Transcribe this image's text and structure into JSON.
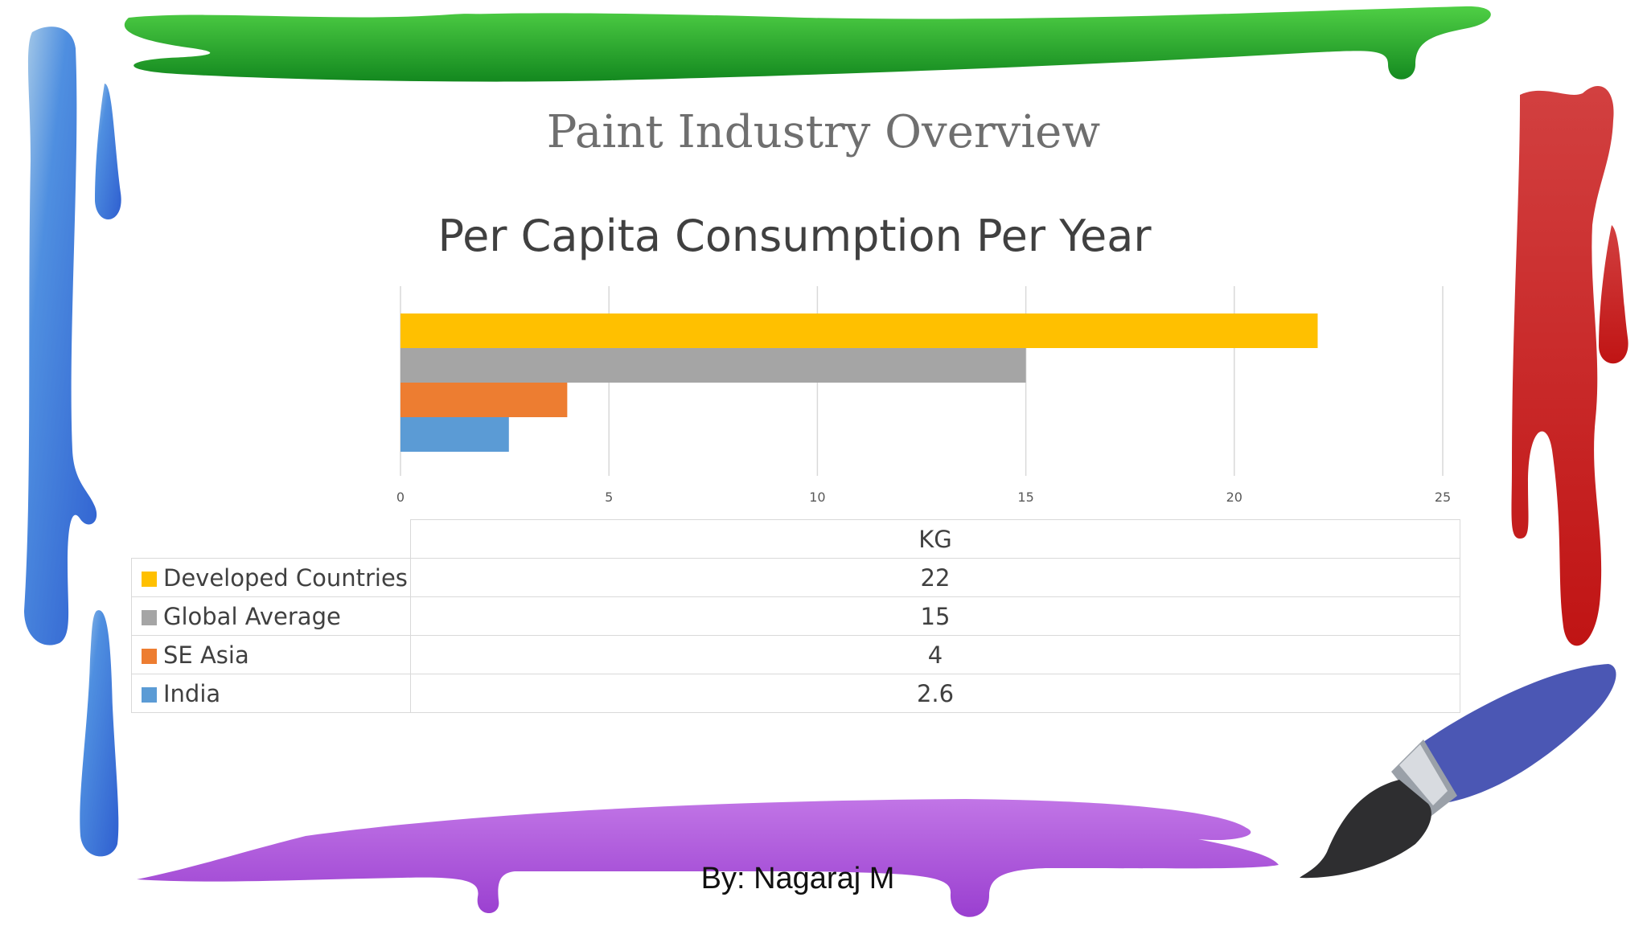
{
  "slide": {
    "title": "Paint Industry Overview",
    "author": "By: Nagaraj M"
  },
  "chart_data": {
    "type": "bar",
    "orientation": "horizontal",
    "title": "Per Capita Consumption Per Year",
    "series_header": "KG",
    "categories": [
      "Developed Countries",
      "Global Average",
      "SE Asia",
      "India"
    ],
    "values": [
      22,
      15,
      4,
      2.6
    ],
    "colors": [
      "#FFC000",
      "#A5A5A5",
      "#ED7D31",
      "#5B9BD5"
    ],
    "xlim": [
      0,
      25
    ],
    "xticks": [
      0,
      5,
      10,
      15,
      20,
      25
    ],
    "grid": true,
    "legend": "data-table"
  },
  "decorations": {
    "colors": {
      "green": "#1fa02c",
      "blue": "#3d7fdc",
      "red": "#c8201f",
      "purple": "#a44fd6",
      "brush_handle": "#4b57b4"
    },
    "icons": [
      "paint-drip-green",
      "paint-drip-blue",
      "paint-drip-red",
      "paint-drip-purple",
      "paintbrush-icon"
    ]
  }
}
